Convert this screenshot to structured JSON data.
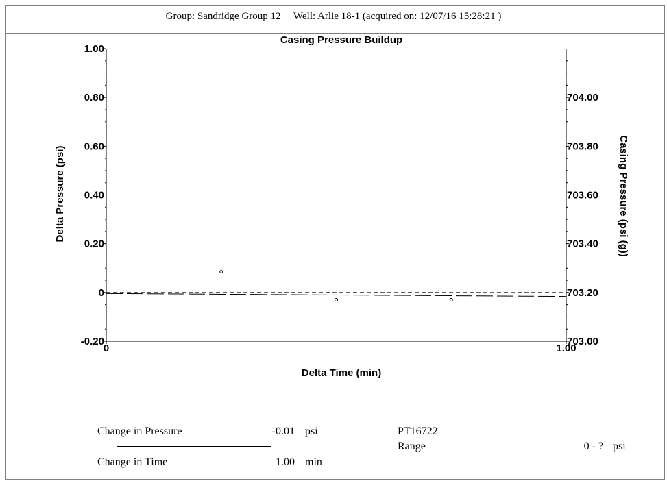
{
  "header": {
    "group_text": "Group: Sandridge Group 12",
    "well_text": "Well: Arlie 18-1 (acquired on: 12/07/16 15:28:21 )"
  },
  "chart_data": {
    "type": "scatter",
    "title": "Casing Pressure Buildup",
    "xlabel": "Delta Time (min)",
    "ylabel": "Delta Pressure (psi)",
    "y2label": "Casing Pressure (psi (g))",
    "xlim": [
      0,
      1.0
    ],
    "ylim": [
      -0.2,
      1.0
    ],
    "y2lim": [
      703.0,
      704.2
    ],
    "x_ticks": [
      "0",
      "1.00"
    ],
    "x_tick_values": [
      0,
      1.0
    ],
    "y_ticks": [
      "-0.20",
      "0",
      "0.20",
      "0.40",
      "0.60",
      "0.80",
      "1.00"
    ],
    "y_tick_values": [
      -0.2,
      0,
      0.2,
      0.4,
      0.6,
      0.8,
      1.0
    ],
    "y2_ticks": [
      "703.00",
      "703.20",
      "703.40",
      "703.60",
      "703.80",
      "704.00"
    ],
    "y2_tick_values": [
      703.0,
      703.2,
      703.4,
      703.6,
      703.8,
      704.0
    ],
    "grid": false,
    "series": [
      {
        "style": "points",
        "x": [
          0.25,
          0.5,
          0.75
        ],
        "y": [
          0.085,
          -0.03,
          -0.03
        ]
      },
      {
        "style": "dashed-line",
        "x": [
          0,
          1.0
        ],
        "y": [
          0,
          0
        ]
      },
      {
        "style": "long-dash-line",
        "x": [
          0,
          1.0
        ],
        "y": [
          0,
          -0.012
        ]
      }
    ]
  },
  "summary": {
    "pressure_label": "Change in Pressure",
    "pressure_value": "-0.01",
    "pressure_unit": "psi",
    "time_label": "Change in Time",
    "time_value": "1.00",
    "time_unit": "min",
    "sensor_id": "PT16722",
    "range_label": "Range",
    "range_value": "0 - ?",
    "range_unit": "psi"
  }
}
